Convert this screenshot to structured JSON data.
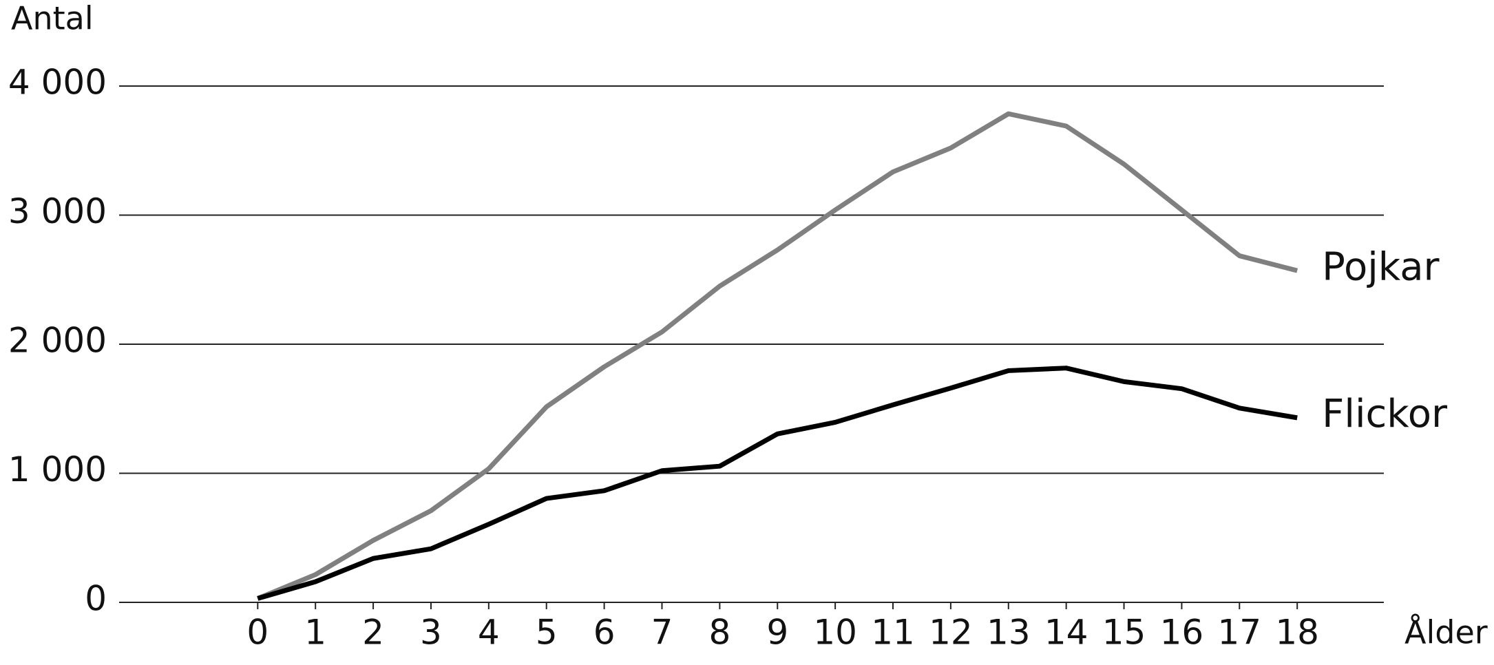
{
  "chart_data": {
    "type": "line",
    "ylabel": "Antal",
    "xlabel": "Ålder",
    "x": [
      0,
      1,
      2,
      3,
      4,
      5,
      6,
      7,
      8,
      9,
      10,
      11,
      12,
      13,
      14,
      15,
      16,
      17,
      18
    ],
    "series": [
      {
        "name": "Pojkar",
        "color": "#808080",
        "values": [
          30,
          215,
          480,
          710,
          1035,
          1515,
          1825,
          2095,
          2450,
          2730,
          3040,
          3335,
          3520,
          3785,
          3690,
          3395,
          3040,
          2685,
          2570
        ]
      },
      {
        "name": "Flickor",
        "color": "#000000",
        "values": [
          30,
          160,
          340,
          415,
          605,
          805,
          865,
          1020,
          1055,
          1305,
          1395,
          1530,
          1660,
          1795,
          1815,
          1710,
          1655,
          1505,
          1430
        ]
      }
    ],
    "xlim": [
      -2.4,
      19.5
    ],
    "ylim": [
      0,
      4000
    ],
    "xticks": [
      0,
      1,
      2,
      3,
      4,
      5,
      6,
      7,
      8,
      9,
      10,
      11,
      12,
      13,
      14,
      15,
      16,
      17,
      18
    ],
    "yticks": [
      0,
      {
        "value": 1000,
        "label": "1 000"
      },
      {
        "value": 2000,
        "label": "2 000"
      },
      {
        "value": 3000,
        "label": "3 000"
      },
      {
        "value": 4000,
        "label": "4 000"
      }
    ],
    "grid": true
  }
}
